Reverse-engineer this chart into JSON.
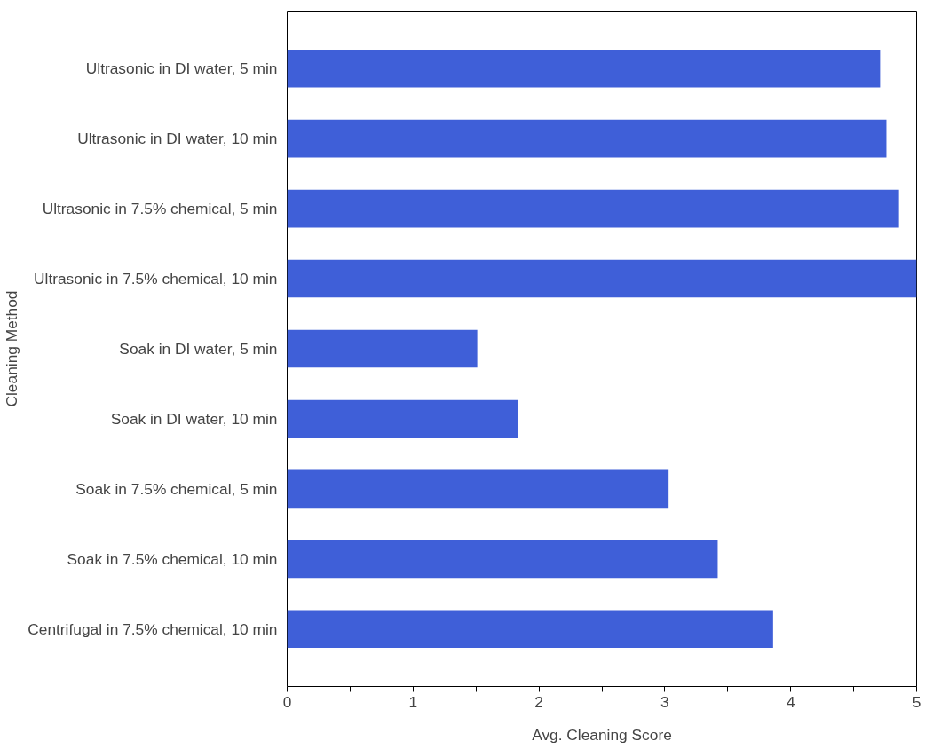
{
  "chart_data": {
    "type": "bar",
    "orientation": "horizontal",
    "xlabel": "Avg. Cleaning Score",
    "ylabel": "Cleaning Method",
    "categories": [
      "Ultrasonic in DI water, 5 min",
      "Ultrasonic in DI water, 10 min",
      "Ultrasonic in 7.5% chemical, 5 min",
      "Ultrasonic in 7.5% chemical, 10 min",
      "Soak in DI water, 5 min",
      "Soak in DI water, 10 min",
      "Soak in 7.5% chemical, 5 min",
      "Soak in 7.5% chemical, 10 min",
      "Centrifugal in 7.5% chemical, 10 min"
    ],
    "values": [
      4.71,
      4.76,
      4.86,
      5.0,
      1.51,
      1.83,
      3.03,
      3.42,
      3.86
    ],
    "color": "#3f5fd8",
    "xlim": [
      0,
      5
    ],
    "xticks": [
      0,
      {
        "value": 0.5,
        "label": null
      },
      1,
      {
        "value": 1.5,
        "label": null
      },
      2,
      {
        "value": 2.5,
        "label": null
      },
      3,
      {
        "value": 3.5,
        "label": null
      },
      4,
      {
        "value": 4.5,
        "label": null
      },
      5
    ],
    "grid": false
  }
}
